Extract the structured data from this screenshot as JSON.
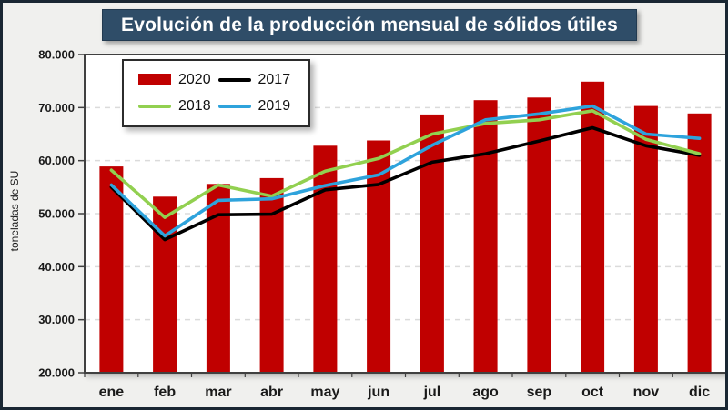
{
  "title": "Evolución de la producción mensual de sólidos útiles",
  "y_axis_title": "toneladas de SU",
  "colors": {
    "canvas_bg": "#F0F0EE",
    "outer_frame": "#1A2733",
    "title_banner_bg": "#2F4D68",
    "title_text": "#FFFFFF",
    "plot_bg": "#FFFFFF",
    "plot_border": "#404040",
    "gridline": "#DBDBDB",
    "axis_text": "#1A1A1A",
    "bar_2020": "#C00000",
    "line_2017": "#000000",
    "line_2018": "#92D050",
    "line_2019": "#2EA3DC"
  },
  "legend": {
    "position": "top-left inside plot",
    "order": [
      "2020",
      "2017",
      "2018",
      "2019"
    ]
  },
  "chart_data": {
    "type": "combo-bar-line",
    "title": "Evolución de la producción mensual de sólidos útiles",
    "xlabel": "",
    "ylabel": "toneladas de SU",
    "categories": [
      "ene",
      "feb",
      "mar",
      "abr",
      "may",
      "jun",
      "jul",
      "ago",
      "sep",
      "oct",
      "nov",
      "dic"
    ],
    "series": [
      {
        "name": "2020",
        "type": "bar",
        "color": "#C00000",
        "values": [
          58900,
          53200,
          55600,
          56700,
          62800,
          63800,
          68700,
          71400,
          71900,
          74900,
          70300,
          68900
        ]
      },
      {
        "name": "2017",
        "type": "line",
        "color": "#000000",
        "values": [
          55000,
          45100,
          49800,
          49900,
          54500,
          55500,
          59700,
          61300,
          63700,
          66200,
          62800,
          61000
        ]
      },
      {
        "name": "2018",
        "type": "line",
        "color": "#92D050",
        "values": [
          58200,
          49300,
          55400,
          53300,
          58000,
          60400,
          65000,
          67000,
          67700,
          69400,
          64000,
          61300
        ]
      },
      {
        "name": "2019",
        "type": "line",
        "color": "#2EA3DC",
        "values": [
          55400,
          45800,
          52500,
          52800,
          55300,
          57300,
          62900,
          67700,
          68800,
          70300,
          65000,
          64200
        ]
      }
    ],
    "ylim": [
      20000,
      80000
    ],
    "yticks": [
      {
        "value": 80000,
        "label": "80.000"
      },
      {
        "value": 70000,
        "label": "70.000"
      },
      {
        "value": 60000,
        "label": "60.000"
      },
      {
        "value": 50000,
        "label": "50.000"
      },
      {
        "value": 40000,
        "label": "40.000"
      },
      {
        "value": 30000,
        "label": "30.000"
      },
      {
        "value": 20000,
        "label": "20.000"
      }
    ],
    "grid": "horizontal dashed (30000-70000)",
    "legend_position": "top-left inside"
  }
}
